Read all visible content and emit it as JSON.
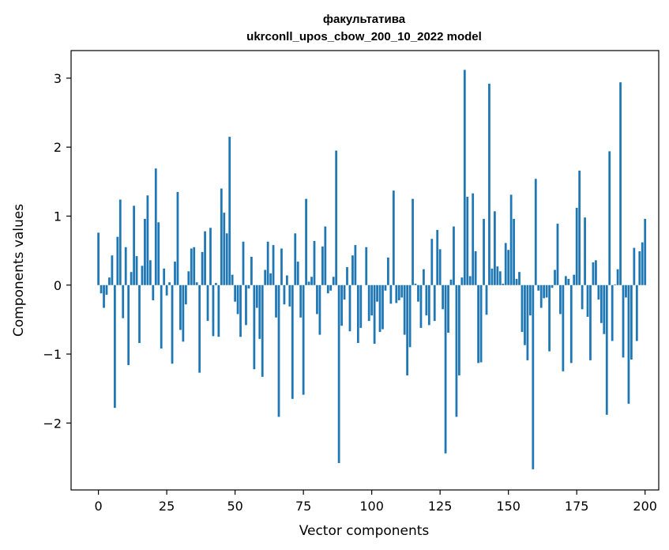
{
  "chart_data": {
    "type": "bar",
    "title": "факультатива",
    "subtitle": "ukrconll_upos_cbow_200_10_2022 model",
    "xlabel": "Vector components",
    "ylabel": "Components values",
    "xlim": [
      -10,
      205
    ],
    "ylim": [
      -2.97,
      3.4
    ],
    "xticks": [
      0,
      25,
      50,
      75,
      100,
      125,
      150,
      175,
      200
    ],
    "yticks": [
      -2,
      -1,
      0,
      1,
      2,
      3
    ],
    "ytick_labels": [
      "−2",
      "−1",
      "0",
      "1",
      "2",
      "3"
    ],
    "bar_color": "#1f77b4",
    "values": [
      0.76,
      -0.12,
      -0.33,
      -0.14,
      0.11,
      0.43,
      -1.78,
      0.7,
      1.24,
      -0.48,
      0.55,
      -1.16,
      0.19,
      1.15,
      0.42,
      -0.84,
      0.28,
      0.96,
      1.3,
      0.36,
      -0.22,
      1.69,
      0.91,
      -0.92,
      0.24,
      -0.15,
      0.04,
      -1.14,
      0.34,
      1.35,
      -0.65,
      -0.82,
      -0.28,
      0.2,
      0.53,
      0.55,
      0.04,
      -1.27,
      0.48,
      0.78,
      -0.52,
      0.83,
      -0.74,
      0.03,
      -0.75,
      1.4,
      1.05,
      0.75,
      2.15,
      0.15,
      -0.24,
      -0.42,
      -0.75,
      0.63,
      -0.58,
      -0.05,
      0.41,
      -1.22,
      -0.33,
      -0.78,
      -1.33,
      0.22,
      0.63,
      0.17,
      0.58,
      -0.47,
      -1.91,
      0.53,
      -0.28,
      0.14,
      -0.31,
      -1.65,
      0.75,
      0.34,
      -0.47,
      -1.59,
      1.25,
      0.05,
      0.12,
      0.64,
      -0.42,
      -0.72,
      0.56,
      0.85,
      -0.12,
      -0.08,
      0.12,
      1.95,
      -2.58,
      -0.59,
      -0.21,
      0.26,
      -0.67,
      0.43,
      0.58,
      -0.84,
      -0.62,
      0.0,
      0.55,
      -0.52,
      -0.44,
      -0.85,
      -0.24,
      -0.68,
      -0.64,
      -0.08,
      0.4,
      -0.27,
      1.37,
      -0.26,
      -0.22,
      -0.18,
      -0.72,
      -1.31,
      -0.9,
      1.25,
      0.02,
      -0.24,
      -0.62,
      0.23,
      -0.44,
      -0.58,
      0.67,
      -0.52,
      0.8,
      0.52,
      -0.35,
      -2.44,
      -0.69,
      0.08,
      0.85,
      -1.91,
      -1.31,
      0.11,
      3.12,
      1.28,
      0.13,
      1.33,
      0.49,
      -1.13,
      -1.12,
      0.96,
      -0.43,
      2.92,
      0.24,
      1.07,
      0.27,
      0.2,
      0.02,
      0.61,
      0.51,
      1.31,
      0.96,
      0.09,
      0.19,
      -0.68,
      -0.87,
      -1.09,
      -0.44,
      -2.67,
      1.54,
      -0.08,
      -0.33,
      -0.19,
      -0.18,
      -0.96,
      -0.04,
      0.22,
      0.89,
      -0.42,
      -1.25,
      0.13,
      0.09,
      -1.13,
      0.15,
      1.12,
      1.66,
      -0.35,
      0.98,
      -0.46,
      -1.09,
      0.33,
      0.36,
      -0.21,
      -0.55,
      -0.71,
      -1.88,
      1.94,
      -0.81,
      0.01,
      0.23,
      2.94,
      -1.05,
      -0.18,
      -1.72,
      -1.08,
      0.54,
      -0.81,
      0.49,
      0.62,
      0.96
    ]
  }
}
